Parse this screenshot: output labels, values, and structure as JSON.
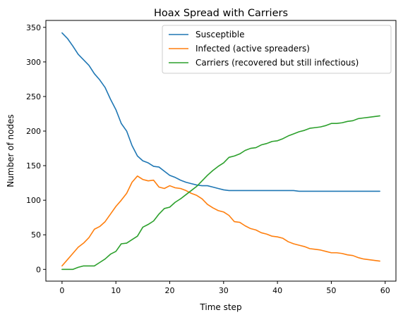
{
  "chart_data": {
    "type": "line",
    "title": "Hoax Spread with Carriers",
    "xlabel": "Time step",
    "ylabel": "Number of nodes",
    "xlim": [
      -3,
      62
    ],
    "ylim": [
      -17,
      360
    ],
    "xticks": [
      0,
      10,
      20,
      30,
      40,
      50,
      60
    ],
    "yticks": [
      0,
      50,
      100,
      150,
      200,
      250,
      300,
      350
    ],
    "grid": false,
    "legend_position": "upper right",
    "x": [
      0,
      1,
      2,
      3,
      4,
      5,
      6,
      7,
      8,
      9,
      10,
      11,
      12,
      13,
      14,
      15,
      16,
      17,
      18,
      19,
      20,
      21,
      22,
      23,
      24,
      25,
      26,
      27,
      28,
      29,
      30,
      31,
      32,
      33,
      34,
      35,
      36,
      37,
      38,
      39,
      40,
      41,
      42,
      43,
      44,
      45,
      46,
      47,
      48,
      49,
      50,
      51,
      52,
      53,
      54,
      55,
      56,
      57,
      58,
      59
    ],
    "series": [
      {
        "name": "Susceptible",
        "color": "#1f77b4",
        "values": [
          342,
          334,
          323,
          311,
          303,
          295,
          283,
          274,
          263,
          246,
          231,
          211,
          200,
          179,
          164,
          157,
          154,
          149,
          148,
          142,
          136,
          133,
          129,
          126,
          124,
          122,
          121,
          121,
          119,
          117,
          115,
          114,
          114,
          114,
          114,
          114,
          114,
          114,
          114,
          114,
          114,
          114,
          114,
          114,
          113,
          113,
          113,
          113,
          113,
          113,
          113,
          113,
          113,
          113,
          113,
          113,
          113,
          113,
          113,
          113
        ]
      },
      {
        "name": "Infected (active spreaders)",
        "color": "#ff7f0e",
        "values": [
          5,
          14,
          23,
          32,
          38,
          46,
          58,
          62,
          69,
          80,
          91,
          100,
          110,
          126,
          135,
          130,
          128,
          129,
          119,
          117,
          121,
          118,
          117,
          114,
          110,
          107,
          102,
          94,
          89,
          85,
          83,
          78,
          69,
          68,
          63,
          59,
          57,
          53,
          51,
          48,
          47,
          45,
          40,
          37,
          35,
          33,
          30,
          29,
          28,
          26,
          24,
          24,
          23,
          21,
          20,
          17,
          15,
          14,
          13,
          12
        ]
      },
      {
        "name": "Carriers (recovered but still infectious)",
        "color": "#2ca02c",
        "values": [
          0,
          0,
          0,
          3,
          5,
          5,
          5,
          10,
          15,
          22,
          26,
          37,
          38,
          43,
          48,
          61,
          65,
          70,
          80,
          88,
          90,
          97,
          102,
          108,
          114,
          120,
          128,
          136,
          143,
          149,
          154,
          162,
          164,
          167,
          172,
          175,
          176,
          180,
          182,
          185,
          186,
          189,
          193,
          196,
          199,
          201,
          204,
          205,
          206,
          208,
          211,
          211,
          212,
          214,
          215,
          218,
          219,
          220,
          221,
          222
        ]
      }
    ]
  }
}
